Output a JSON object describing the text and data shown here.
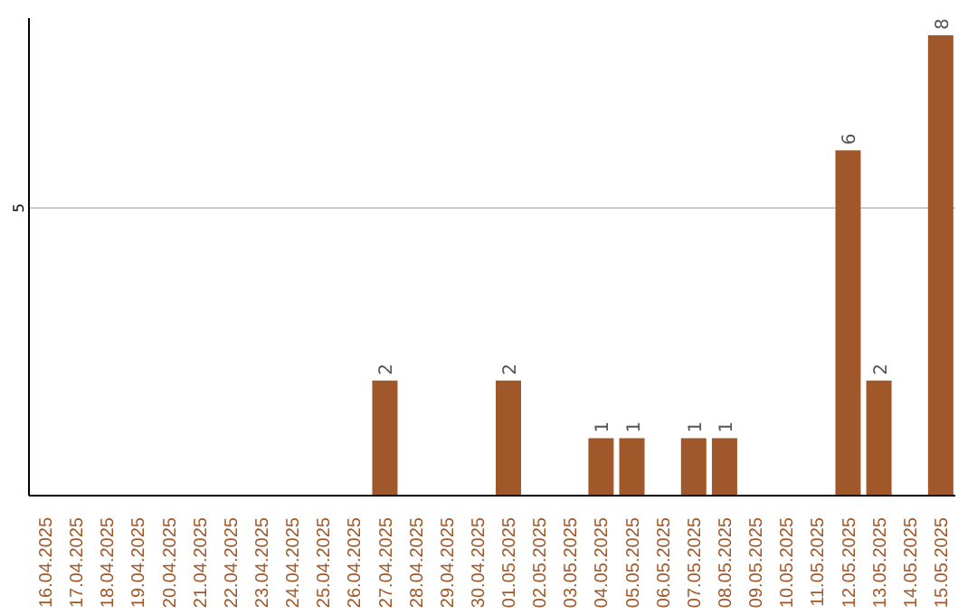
{
  "chart_data": {
    "type": "bar",
    "categories": [
      "16.04.2025",
      "17.04.2025",
      "18.04.2025",
      "19.04.2025",
      "20.04.2025",
      "21.04.2025",
      "22.04.2025",
      "23.04.2025",
      "24.04.2025",
      "25.04.2025",
      "26.04.2025",
      "27.04.2025",
      "28.04.2025",
      "29.04.2025",
      "30.04.2025",
      "01.05.2025",
      "02.05.2025",
      "03.05.2025",
      "04.05.2025",
      "05.05.2025",
      "06.05.2025",
      "07.05.2025",
      "08.05.2025",
      "09.05.2025",
      "10.05.2025",
      "11.05.2025",
      "12.05.2025",
      "13.05.2025",
      "14.05.2025",
      "15.05.2025"
    ],
    "values": [
      0,
      0,
      0,
      0,
      0,
      0,
      0,
      0,
      0,
      0,
      0,
      2,
      0,
      0,
      0,
      2,
      0,
      0,
      1,
      1,
      0,
      1,
      1,
      0,
      0,
      0,
      6,
      2,
      0,
      8
    ],
    "value_labels": [
      null,
      null,
      null,
      null,
      null,
      null,
      null,
      null,
      null,
      null,
      null,
      "2",
      null,
      null,
      null,
      "2",
      null,
      null,
      "1",
      "1",
      null,
      "1",
      "1",
      null,
      null,
      null,
      "6",
      "2",
      null,
      "8"
    ],
    "color": "#a0582a",
    "ylim": [
      0,
      8.3
    ],
    "yticks": [
      5
    ],
    "grid": "y"
  }
}
